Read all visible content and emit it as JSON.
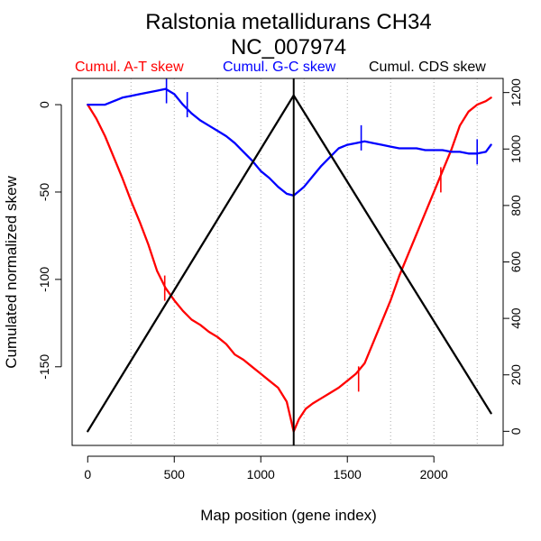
{
  "chart_data": {
    "type": "line",
    "title": "Ralstonia metallidurans CH34",
    "subtitle": "NC_007974",
    "xlabel": "Map position (gene index)",
    "ylabel": "Cumulated normalized skew",
    "xlim": [
      -90,
      2400
    ],
    "ylim": [
      -195,
      15
    ],
    "y2lim": [
      -50,
      1250
    ],
    "xticks": [
      "0",
      "500",
      "1000",
      "1500",
      "2000"
    ],
    "xtick_values": [
      0,
      500,
      1000,
      1500,
      2000
    ],
    "yticks": [
      "0",
      "-50",
      "-100",
      "-150"
    ],
    "ytick_values": [
      0,
      -50,
      -100,
      -150
    ],
    "y2ticks": [
      "0",
      "200",
      "400",
      "600",
      "800",
      "1000",
      "1200"
    ],
    "y2tick_values": [
      0,
      200,
      400,
      600,
      800,
      1000,
      1200
    ],
    "gridlines_x": [
      250,
      500,
      750,
      1000,
      1250,
      1500,
      1750,
      2000,
      2250
    ],
    "vertical_line_x": 1190,
    "series": [
      {
        "name": "Cumul. A-T skew",
        "color": "#ff0000",
        "axis": "left",
        "x": [
          0,
          50,
          100,
          150,
          200,
          250,
          300,
          350,
          400,
          450,
          500,
          550,
          600,
          650,
          700,
          750,
          800,
          850,
          900,
          950,
          1000,
          1050,
          1100,
          1150,
          1190,
          1220,
          1260,
          1300,
          1350,
          1400,
          1450,
          1500,
          1550,
          1600,
          1650,
          1700,
          1750,
          1800,
          1850,
          1900,
          1950,
          2000,
          2050,
          2100,
          2150,
          2200,
          2250,
          2300,
          2330
        ],
        "values": [
          0,
          -8,
          -18,
          -30,
          -42,
          -55,
          -67,
          -80,
          -95,
          -105,
          -112,
          -118,
          -123,
          -126,
          -130,
          -133,
          -137,
          -143,
          -146,
          -150,
          -154,
          -158,
          -162,
          -170,
          -187,
          -180,
          -174,
          -171,
          -168,
          -165,
          -162,
          -158,
          -154,
          -148,
          -136,
          -124,
          -112,
          -98,
          -86,
          -74,
          -62,
          -50,
          -38,
          -26,
          -12,
          -4,
          0,
          2,
          4
        ]
      },
      {
        "name": "Cumul. G-C skew",
        "color": "#0000ff",
        "axis": "left",
        "x": [
          0,
          50,
          100,
          150,
          200,
          250,
          300,
          350,
          400,
          450,
          500,
          550,
          600,
          650,
          700,
          750,
          800,
          850,
          900,
          950,
          1000,
          1050,
          1100,
          1150,
          1190,
          1250,
          1300,
          1350,
          1400,
          1450,
          1500,
          1550,
          1600,
          1650,
          1700,
          1750,
          1800,
          1850,
          1900,
          1950,
          2000,
          2050,
          2100,
          2150,
          2200,
          2250,
          2300,
          2330
        ],
        "values": [
          0,
          0,
          0,
          2,
          4,
          5,
          6,
          7,
          8,
          9,
          6,
          0,
          -5,
          -9,
          -12,
          -15,
          -18,
          -22,
          -27,
          -32,
          -38,
          -42,
          -47,
          -51,
          -52,
          -47,
          -41,
          -35,
          -30,
          -25,
          -23,
          -22,
          -21,
          -22,
          -23,
          -24,
          -25,
          -25,
          -25,
          -26,
          -26,
          -26,
          -27,
          -27,
          -28,
          -28,
          -27,
          -23
        ]
      },
      {
        "name": "Cumul. CDS skew",
        "color": "#000000",
        "axis": "right",
        "x": [
          0,
          1190,
          2330
        ],
        "values": [
          0,
          1190,
          64
        ]
      }
    ],
    "markers": [
      {
        "series": "Cumul. A-T skew",
        "x": [
          445,
          1565,
          2040
        ],
        "values": [
          -105,
          -157,
          -43
        ]
      },
      {
        "series": "Cumul. G-C skew",
        "x": [
          455,
          575,
          1580,
          2250
        ],
        "values": [
          8,
          0,
          -19,
          -27
        ]
      }
    ]
  }
}
